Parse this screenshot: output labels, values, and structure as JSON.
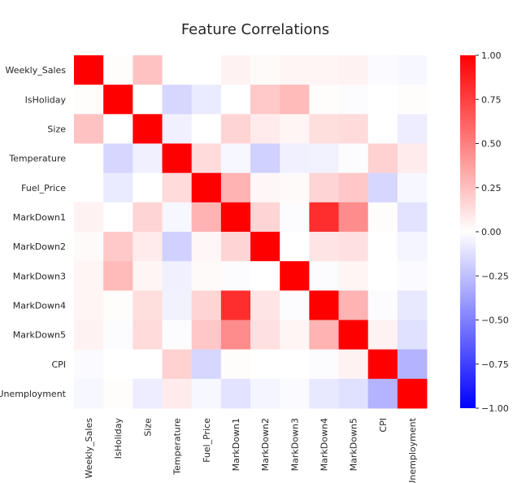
{
  "chart_data": {
    "type": "heatmap",
    "title": "Feature Correlations",
    "rows": [
      "Weekly_Sales",
      "IsHoliday",
      "Size",
      "Temperature",
      "Fuel_Price",
      "MarkDown1",
      "MarkDown2",
      "MarkDown3",
      "MarkDown4",
      "MarkDown5",
      "CPI",
      "Unemployment"
    ],
    "columns": [
      "Weekly_Sales",
      "IsHoliday",
      "Size",
      "Temperature",
      "Fuel_Price",
      "MarkDown1",
      "MarkDown2",
      "MarkDown3",
      "MarkDown4",
      "MarkDown5",
      "CPI",
      "Unemployment"
    ],
    "values": [
      [
        1.0,
        0.01,
        0.24,
        -0.0,
        -0.0,
        0.05,
        0.02,
        0.04,
        0.04,
        0.05,
        -0.02,
        -0.03
      ],
      [
        0.01,
        1.0,
        -0.0,
        -0.16,
        -0.08,
        -0.0,
        0.21,
        0.27,
        0.01,
        -0.01,
        -0.0,
        0.01
      ],
      [
        0.24,
        -0.0,
        1.0,
        -0.06,
        0.0,
        0.17,
        0.08,
        0.04,
        0.13,
        0.14,
        -0.0,
        -0.07
      ],
      [
        -0.0,
        -0.16,
        -0.06,
        1.0,
        0.14,
        -0.03,
        -0.18,
        -0.06,
        -0.05,
        -0.01,
        0.18,
        0.08
      ],
      [
        -0.0,
        -0.08,
        0.0,
        0.14,
        1.0,
        0.3,
        0.03,
        0.02,
        0.17,
        0.22,
        -0.16,
        -0.03
      ],
      [
        0.05,
        -0.0,
        0.17,
        -0.03,
        0.3,
        1.0,
        0.17,
        -0.01,
        0.82,
        0.45,
        0.01,
        -0.11
      ],
      [
        0.02,
        0.21,
        0.08,
        -0.18,
        0.03,
        0.17,
        1.0,
        -0.0,
        0.1,
        0.12,
        -0.0,
        -0.04
      ],
      [
        0.04,
        0.27,
        0.04,
        -0.06,
        0.02,
        -0.01,
        -0.0,
        1.0,
        -0.01,
        0.04,
        -0.0,
        -0.02
      ],
      [
        0.04,
        0.01,
        0.13,
        -0.05,
        0.17,
        0.82,
        0.1,
        -0.01,
        1.0,
        0.3,
        -0.01,
        -0.09
      ],
      [
        0.05,
        -0.01,
        0.14,
        -0.01,
        0.22,
        0.45,
        0.12,
        0.04,
        0.3,
        1.0,
        0.05,
        -0.12
      ],
      [
        -0.02,
        -0.0,
        -0.0,
        0.18,
        -0.16,
        0.01,
        -0.0,
        -0.0,
        -0.01,
        0.05,
        1.0,
        -0.3
      ],
      [
        -0.03,
        0.01,
        -0.07,
        0.08,
        -0.03,
        -0.11,
        -0.04,
        -0.02,
        -0.09,
        -0.12,
        -0.3,
        1.0
      ]
    ],
    "colormap": [
      "#0000ff",
      "#ffffff",
      "#ff0000"
    ],
    "vmin": -1.0,
    "vmax": 1.0,
    "colorbar_ticks": [
      "1.00",
      "0.75",
      "0.50",
      "0.25",
      "0.00",
      "−0.25",
      "−0.50",
      "−0.75",
      "−1.00"
    ],
    "colorbar_tick_values": [
      1.0,
      0.75,
      0.5,
      0.25,
      0.0,
      -0.25,
      -0.5,
      -0.75,
      -1.0
    ]
  }
}
